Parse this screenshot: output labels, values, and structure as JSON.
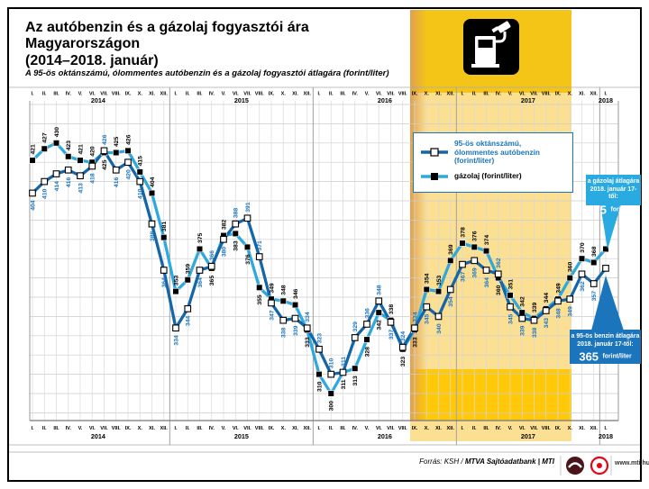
{
  "title": "Az autóbenzin és a gázolaj fogyasztói ára Magyarországon\n(2014–2018. január)",
  "subtitle": "A 95-ös oktánszámú, ólommentes autóbenzin és a gázolaj fogyasztói átlagára (forint/liter)",
  "legend": {
    "petrol_label": "95-ös oktánszámú,\nólommentes autóbenzin\n(forint/liter)",
    "diesel_label": "gázolaj (forint/liter)"
  },
  "callouts": {
    "diesel": {
      "line1": "a gázolaj átlagára",
      "line2": "2018. január 17-től:",
      "value": "375",
      "unit": "forint/liter",
      "bg": "#29abe2"
    },
    "petrol": {
      "line1": "a 95-ös benzin átlagára",
      "line2": "2018. január 17-től:",
      "value": "365",
      "unit": "forint/liter",
      "bg": "#1b75bc"
    }
  },
  "footer": {
    "source_prefix": "Forrás: KSH / ",
    "source_bold": "MTVA Sajtóadatbank",
    "source_suffix": " | MTI",
    "url": "www.mti.hu"
  },
  "colors": {
    "petrol_line": "#1566a8",
    "diesel_line": "#2fa9dd",
    "petrol_label": "#1b75bc",
    "diesel_label": "#000000",
    "band_pale": "#fbdf93",
    "band_banner": "#f4c517",
    "band_bottom": "#ffc808",
    "band_edge": "#dfa050",
    "grid_minor": "#d9d9d9",
    "grid_major": "#a8a8a8",
    "hgrid": "#cccccc"
  },
  "chart_data": {
    "type": "line",
    "title": "Az autóbenzin és a gázolaj fogyasztói ára Magyarországon (2014–2018. január)",
    "ylabel": "forint/liter",
    "ylim": [
      290,
      450
    ],
    "grid": true,
    "legend_position": "top-right",
    "months": [
      "I.",
      "II.",
      "III.",
      "IV.",
      "V.",
      "VI.",
      "VII.",
      "VIII.",
      "IX.",
      "X.",
      "XI.",
      "XII."
    ],
    "years": [
      {
        "label": "2014",
        "start": 0,
        "count": 12
      },
      {
        "label": "2015",
        "start": 12,
        "count": 12
      },
      {
        "label": "2016",
        "start": 24,
        "count": 12
      },
      {
        "label": "2017",
        "start": 36,
        "count": 12
      },
      {
        "label": "2018",
        "start": 48,
        "count": 1
      }
    ],
    "series": [
      {
        "name": "95-ös oktánszámú, ólommentes autóbenzin (forint/liter)",
        "marker": "white-square",
        "values": [
          404,
          410,
          414,
          416,
          413,
          418,
          426,
          416,
          420,
          410,
          388,
          364,
          334,
          344,
          364,
          366,
          380,
          388,
          391,
          371,
          347,
          338,
          339,
          334,
          323,
          310,
          311,
          329,
          336,
          348,
          337,
          324,
          334,
          345,
          340,
          354,
          367,
          369,
          364,
          362,
          345,
          339,
          338,
          343,
          348,
          349,
          362,
          357,
          365
        ]
      },
      {
        "name": "gázolaj (forint/liter)",
        "marker": "black-square",
        "values": [
          421,
          427,
          430,
          423,
          421,
          420,
          425,
          425,
          426,
          415,
          404,
          381,
          353,
          359,
          375,
          365,
          382,
          383,
          376,
          355,
          349,
          348,
          346,
          333,
          310,
          300,
          311,
          313,
          328,
          342,
          338,
          323,
          333,
          354,
          353,
          369,
          378,
          376,
          374,
          360,
          351,
          342,
          339,
          344,
          349,
          360,
          370,
          368,
          375
        ]
      }
    ],
    "last_point_labels_hidden": true,
    "annotations": [
      {
        "text": "a gázolaj átlagára 2018. január 17-től: 375 forint/liter",
        "target": "gázolaj 2018 I."
      },
      {
        "text": "a 95-ös benzin átlagára 2018. január 17-től: 365 forint/liter",
        "target": "benzin 2018 I."
      }
    ]
  }
}
